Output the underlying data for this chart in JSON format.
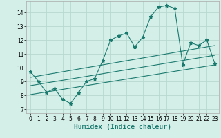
{
  "xlabel": "Humidex (Indice chaleur)",
  "xlim": [
    -0.5,
    23.5
  ],
  "ylim": [
    6.7,
    14.8
  ],
  "yticks": [
    7,
    8,
    9,
    10,
    11,
    12,
    13,
    14
  ],
  "xticks": [
    0,
    1,
    2,
    3,
    4,
    5,
    6,
    7,
    8,
    9,
    10,
    11,
    12,
    13,
    14,
    15,
    16,
    17,
    18,
    19,
    20,
    21,
    22,
    23
  ],
  "bg_color": "#d4eee8",
  "line_color": "#1a7a6e",
  "grid_color": "#b8d8d0",
  "main_x": [
    0,
    1,
    2,
    3,
    4,
    5,
    6,
    7,
    8,
    9,
    10,
    11,
    12,
    13,
    14,
    15,
    16,
    17,
    18,
    19,
    20,
    21,
    22,
    23
  ],
  "main_y": [
    9.7,
    9.0,
    8.2,
    8.5,
    7.7,
    7.4,
    8.2,
    9.0,
    9.2,
    10.5,
    12.0,
    12.3,
    12.5,
    11.5,
    12.2,
    13.7,
    14.4,
    14.5,
    14.3,
    10.2,
    11.8,
    11.6,
    12.0,
    10.3
  ],
  "line1_x": [
    0,
    23
  ],
  "line1_y": [
    9.3,
    11.6
  ],
  "line2_x": [
    0,
    23
  ],
  "line2_y": [
    8.7,
    10.9
  ],
  "line3_x": [
    0,
    23
  ],
  "line3_y": [
    8.05,
    10.2
  ],
  "tick_fontsize": 5.5,
  "xlabel_fontsize": 7,
  "marker_size": 3.5,
  "line_width": 0.8
}
